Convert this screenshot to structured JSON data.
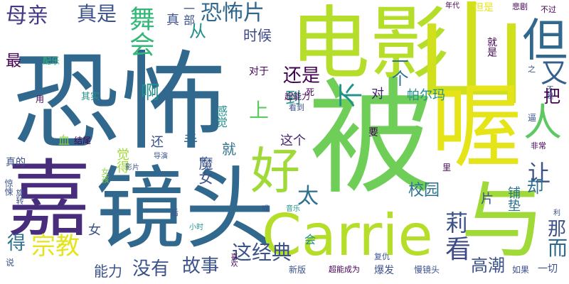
{
  "palette": {
    "background": "#ffffff",
    "dark_purple": "#440154",
    "indigo": "#3b528b",
    "blue": "#31688e",
    "teal": "#21918c",
    "green": "#35b779",
    "lime": "#90d743",
    "yellow": "#fde725"
  },
  "words": {
    "kongbu": "恐怖",
    "dianying": "电影",
    "shan": "山",
    "bei": "被",
    "jingtou": "镜头",
    "jia": "嘉",
    "xi": "喔",
    "carrie": "Carrie",
    "yu": "与",
    "hao": "好",
    "dan": "但",
    "ren": "人",
    "muqin": "母亲",
    "zhenshi": "真是",
    "wuhui": "舞会",
    "kongbupian": "恐怖片",
    "yibu": "一部",
    "zhen": "真",
    "cong": "从",
    "shihou": "时候",
    "haishi": "还是",
    "bu": "不",
    "you": "又",
    "yige": "一个",
    "dui": "对",
    "duiyu": "对于",
    "paerma": "帕尔玛",
    "a": "啊",
    "dao": "到",
    "ba": "把",
    "shang": "上",
    "zhege": "这个",
    "shou": "手",
    "jiu": "就",
    "ganjue": "感觉",
    "juede": "觉得",
    "huan": "还",
    "mojue": "魔女",
    "tai": "太",
    "rang": "让",
    "que": "却",
    "xiaoyuan": "校园",
    "pian": "片",
    "pudian": "铺垫",
    "li": "莉",
    "kan": "看",
    "zongjiao": "宗教",
    "zhejingdian": "这经典",
    "mei": "没有",
    "gushi": "故事",
    "gaochao": "高潮",
    "er": "而",
    "na": "那",
    "nengli": "能力",
    "de": "得",
    "nv": "女",
    "yihui": "会",
    "zuihou": "最",
    "peiyue": "配乐",
    "qishi": "其实",
    "yong": "用",
    "chaonengli": "超能力",
    "kandao": "看到",
    "si": "死",
    "yao": "要",
    "xue": "血",
    "jiewei": "结尾",
    "zhende": "真的",
    "nvhai": "女孩",
    "jingsong": "惊悚",
    "xuanzhuan": "旋转",
    "shuo": "说",
    "xiaoshi": "小时",
    "hou": "后",
    "xi2": "戏",
    "yinyue": "音乐",
    "yingpian": "影片",
    "daoyan": "导演",
    "zhong": "中",
    "xihuan": "喜欢",
    "xinban": "新版",
    "chaonengchengwei": "超能成为",
    "baofa": "爆发",
    "manjingtou": "慢镜头",
    "ruguo": "如果",
    "yiqie": "一切",
    "fuchou": "复仇",
    "lili": "里",
    "feichang": "非常",
    "bi": "逼",
    "zhi": "之",
    "bushi": "不是",
    "jiushi": "就是",
    "danshi": "但是",
    "beiju": "悲剧",
    "niandai": "年代",
    "buguo": "不过",
    "li2": "利"
  }
}
